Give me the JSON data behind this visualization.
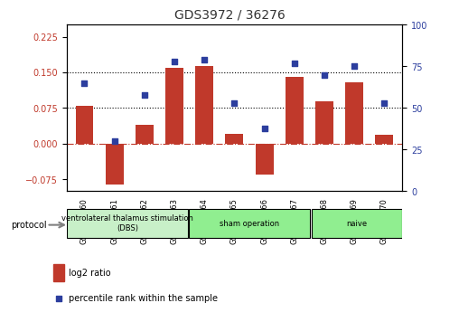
{
  "title": "GDS3972 / 36276",
  "samples": [
    "GSM634960",
    "GSM634961",
    "GSM634962",
    "GSM634963",
    "GSM634964",
    "GSM634965",
    "GSM634966",
    "GSM634967",
    "GSM634968",
    "GSM634969",
    "GSM634970"
  ],
  "log2_ratio": [
    0.08,
    -0.085,
    0.04,
    0.16,
    0.163,
    0.02,
    -0.065,
    0.14,
    0.09,
    0.13,
    0.018
  ],
  "percentile_rank": [
    65,
    30,
    58,
    78,
    79,
    53,
    38,
    77,
    70,
    75,
    53
  ],
  "bar_color": "#c0392b",
  "dot_color": "#2c3e9e",
  "ylim_left": [
    -0.1,
    0.25
  ],
  "ylim_right": [
    0,
    100
  ],
  "yticks_left": [
    -0.075,
    0,
    0.075,
    0.15,
    0.225
  ],
  "yticks_right": [
    0,
    25,
    50,
    75,
    100
  ],
  "hlines": [
    0.075,
    0.15
  ],
  "hline_zero": 0,
  "groups": [
    {
      "label": "ventrolateral thalamus stimulation\n(DBS)",
      "start": 0,
      "end": 4,
      "color": "#c8f0c8"
    },
    {
      "label": "sham operation",
      "start": 4,
      "end": 8,
      "color": "#90ee90"
    },
    {
      "label": "naive",
      "start": 8,
      "end": 11,
      "color": "#90ee90"
    }
  ],
  "protocol_label": "protocol",
  "legend_bar_label": "log2 ratio",
  "legend_dot_label": "percentile rank within the sample",
  "background_color": "#ffffff"
}
